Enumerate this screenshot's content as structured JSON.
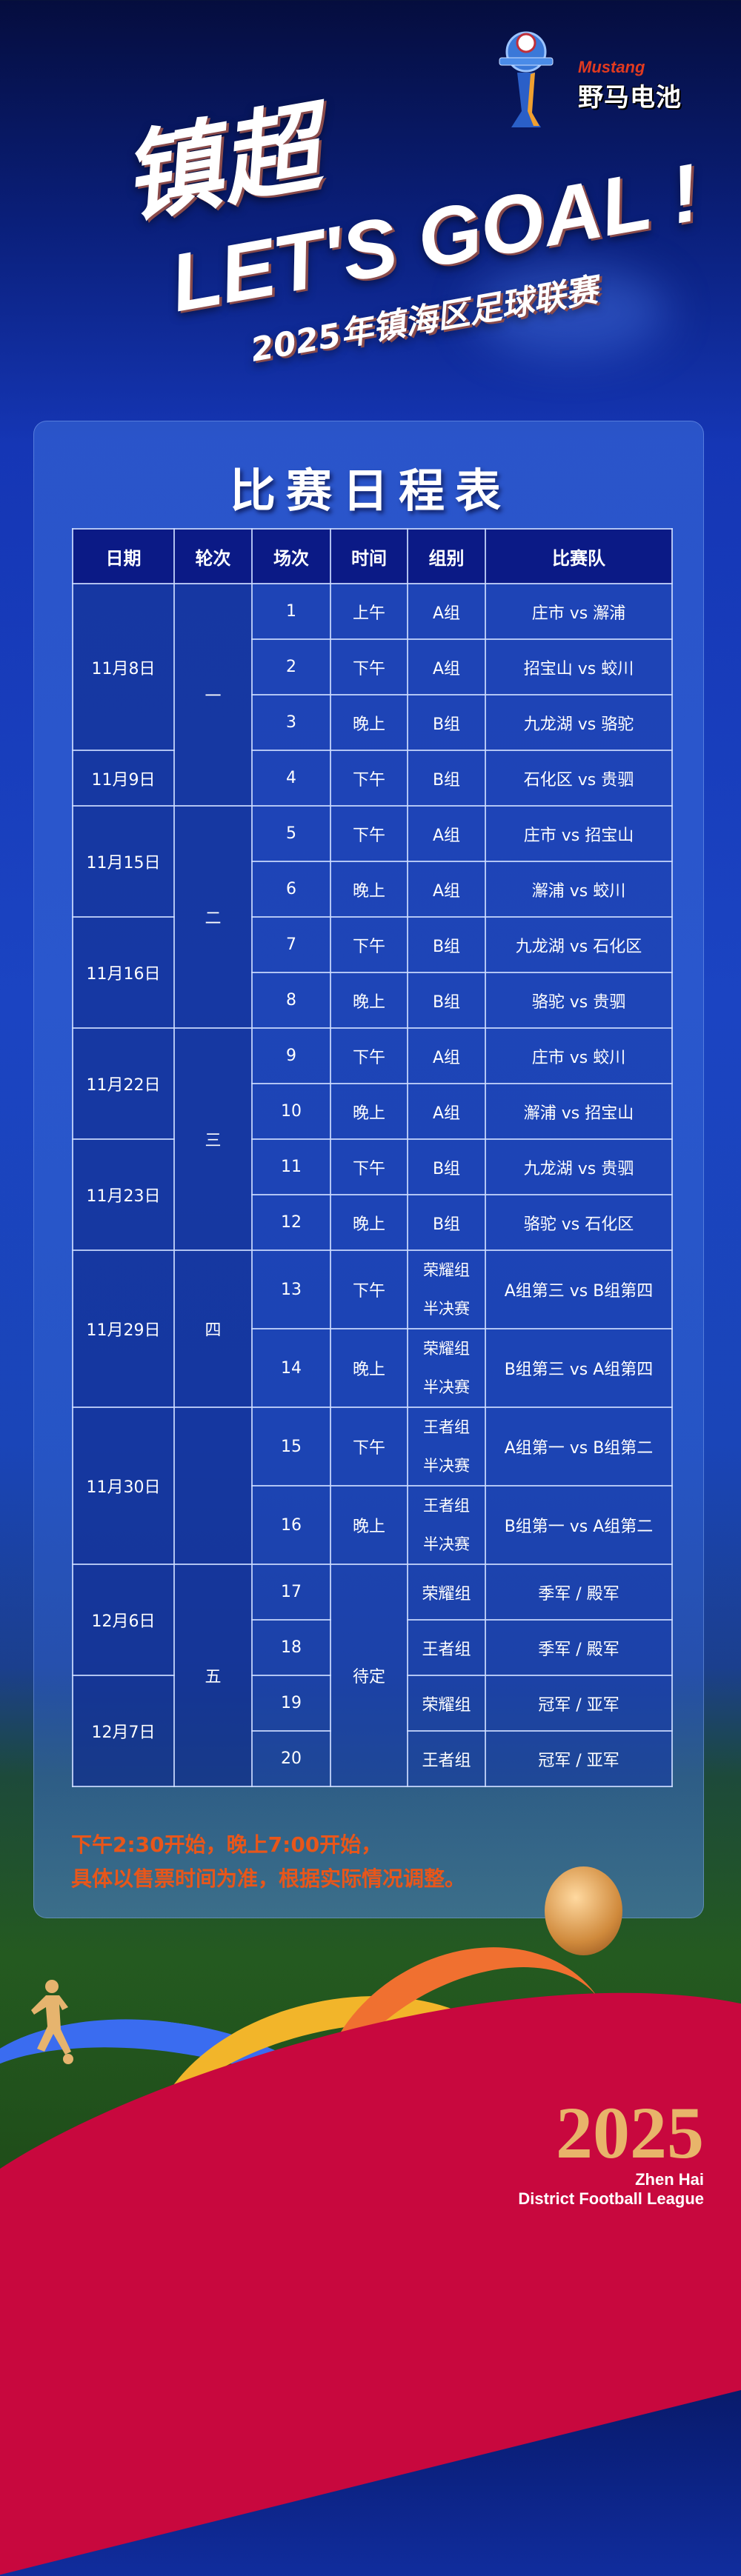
{
  "sponsor": {
    "brand_en": "Mustang",
    "brand_cn": "野马电池"
  },
  "hero": {
    "title_cn": "镇超",
    "slogan": "LET'S GOAL !",
    "subtitle": "2025年镇海区足球联赛"
  },
  "schedule": {
    "title": "比赛日程表",
    "headers": [
      "日期",
      "轮次",
      "场次",
      "时间",
      "组别",
      "比赛队"
    ],
    "dates": [
      "11月8日",
      "11月9日",
      "11月15日",
      "11月16日",
      "11月22日",
      "11月23日",
      "11月29日",
      "11月30日",
      "12月6日",
      "12月7日"
    ],
    "rounds": [
      "一",
      "二",
      "三",
      "四",
      "五"
    ],
    "tbd_time": "待定",
    "matches": [
      {
        "no": "1",
        "time": "上午",
        "group": "A组",
        "teams": "庄市 vs 澥浦"
      },
      {
        "no": "2",
        "time": "下午",
        "group": "A组",
        "teams": "招宝山 vs 蛟川"
      },
      {
        "no": "3",
        "time": "晚上",
        "group": "B组",
        "teams": "九龙湖 vs 骆驼"
      },
      {
        "no": "4",
        "time": "下午",
        "group": "B组",
        "teams": "石化区 vs 贵驷"
      },
      {
        "no": "5",
        "time": "下午",
        "group": "A组",
        "teams": "庄市 vs 招宝山"
      },
      {
        "no": "6",
        "time": "晚上",
        "group": "A组",
        "teams": "澥浦 vs 蛟川"
      },
      {
        "no": "7",
        "time": "下午",
        "group": "B组",
        "teams": "九龙湖 vs 石化区"
      },
      {
        "no": "8",
        "time": "晚上",
        "group": "B组",
        "teams": "骆驼 vs 贵驷"
      },
      {
        "no": "9",
        "time": "下午",
        "group": "A组",
        "teams": "庄市 vs 蛟川"
      },
      {
        "no": "10",
        "time": "晚上",
        "group": "A组",
        "teams": "澥浦 vs 招宝山"
      },
      {
        "no": "11",
        "time": "下午",
        "group": "B组",
        "teams": "九龙湖 vs 贵驷"
      },
      {
        "no": "12",
        "time": "晚上",
        "group": "B组",
        "teams": "骆驼 vs 石化区"
      },
      {
        "no": "13",
        "time": "下午",
        "group": "荣耀组",
        "group2": "半决赛",
        "teams": "A组第三 vs B组第四"
      },
      {
        "no": "14",
        "time": "晚上",
        "group": "荣耀组",
        "group2": "半决赛",
        "teams": "B组第三 vs A组第四"
      },
      {
        "no": "15",
        "time": "下午",
        "group": "王者组",
        "group2": "半决赛",
        "teams": "A组第一 vs B组第二"
      },
      {
        "no": "16",
        "time": "晚上",
        "group": "王者组",
        "group2": "半决赛",
        "teams": "B组第一 vs A组第二"
      },
      {
        "no": "17",
        "group": "荣耀组",
        "teams": "季军 / 殿军"
      },
      {
        "no": "18",
        "group": "王者组",
        "teams": "季军 / 殿军"
      },
      {
        "no": "19",
        "group": "荣耀组",
        "teams": "冠军 / 亚军"
      },
      {
        "no": "20",
        "group": "王者组",
        "teams": "冠军 / 亚军"
      }
    ]
  },
  "notes": [
    "下午2:30开始，晚上7:00开始，",
    "具体以售票时间为准，根据实际情况调整。"
  ],
  "footer_logo": {
    "year": "2025",
    "line1": "Zhen Hai",
    "line2": "District Football League"
  },
  "colors": {
    "header_bg": "#0b1a86",
    "note": "#e8561a",
    "crimson": "#c8083e",
    "gold": "#e8b46a"
  }
}
